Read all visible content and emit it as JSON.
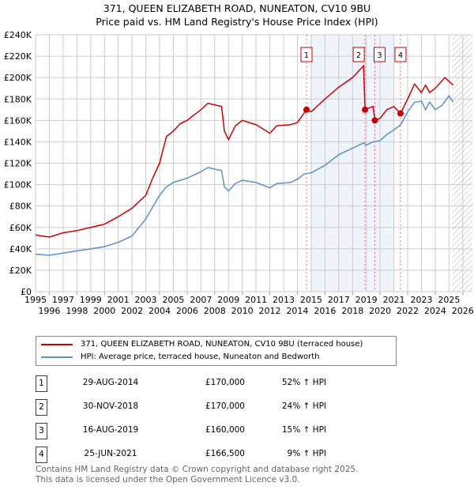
{
  "chart_data": {
    "type": "line",
    "title": "371, QUEEN ELIZABETH ROAD, NUNEATON, CV10 9BU",
    "subtitle": "Price paid vs. HM Land Registry's House Price Index (HPI)",
    "xlim": [
      1995,
      2026.7
    ],
    "ylim": [
      0,
      240000
    ],
    "y_ticks": [
      0,
      20000,
      40000,
      60000,
      80000,
      100000,
      120000,
      140000,
      160000,
      180000,
      200000,
      220000,
      240000
    ],
    "y_tick_labels": [
      "£0",
      "£20K",
      "£40K",
      "£60K",
      "£80K",
      "£100K",
      "£120K",
      "£140K",
      "£160K",
      "£180K",
      "£200K",
      "£220K",
      "£240K"
    ],
    "x_ticks": [
      1995,
      1996,
      1997,
      1998,
      1999,
      2000,
      2001,
      2002,
      2003,
      2004,
      2005,
      2006,
      2007,
      2008,
      2009,
      2010,
      2011,
      2012,
      2013,
      2014,
      2015,
      2016,
      2017,
      2018,
      2019,
      2020,
      2021,
      2022,
      2023,
      2024,
      2025,
      2026
    ],
    "x_tick_labels": [
      "1995",
      "1996",
      "1997",
      "1998",
      "1999",
      "2000",
      "2001",
      "2002",
      "2003",
      "2004",
      "2005",
      "2006",
      "2007",
      "2008",
      "2009",
      "2010",
      "2011",
      "2012",
      "2013",
      "2014",
      "2015",
      "2016",
      "2017",
      "2018",
      "2019",
      "2020",
      "2021",
      "2022",
      "2023",
      "2024",
      "2025",
      "2026"
    ],
    "grid": true,
    "shaded_range": [
      2015,
      2021
    ],
    "hatched_from": 2025.25,
    "series": [
      {
        "name": "371, QUEEN ELIZABETH ROAD, NUNEATON, CV10 9BU (terraced house)",
        "color": "#cc0000",
        "x": [
          1995,
          1996,
          1997,
          1998,
          1999,
          2000,
          2001,
          2002,
          2003,
          2003.5,
          2004,
          2004.5,
          2005,
          2005.5,
          2006,
          2007,
          2007.5,
          2008.5,
          2008.7,
          2009,
          2009.5,
          2010,
          2011,
          2012,
          2012.5,
          2013.5,
          2014,
          2014.66,
          2015,
          2016,
          2017,
          2018,
          2018.8,
          2018.91,
          2019.5,
          2019.62,
          2020,
          2020.5,
          2021,
          2021.48,
          2022,
          2022.5,
          2023,
          2023.3,
          2023.6,
          2024,
          2024.7,
          2025.3
        ],
        "y": [
          53000,
          51000,
          55000,
          57000,
          60000,
          63000,
          70000,
          78000,
          90000,
          106000,
          120000,
          145000,
          150000,
          157000,
          160000,
          170000,
          176000,
          173000,
          150000,
          142000,
          155000,
          160000,
          156000,
          148000,
          155000,
          156000,
          158000,
          170000,
          168000,
          180000,
          191000,
          200000,
          211000,
          170000,
          173000,
          160000,
          162000,
          170000,
          173000,
          166500,
          180000,
          194000,
          186000,
          193000,
          186000,
          190000,
          200000,
          193000
        ]
      },
      {
        "name": "HPI: Average price, terraced house, Nuneaton and Bedworth",
        "color": "#5b8fd0",
        "x": [
          1995,
          1996,
          1997,
          1998,
          1999,
          2000,
          2001,
          2002,
          2003,
          2004,
          2004.5,
          2005,
          2006,
          2007,
          2007.5,
          2008.5,
          2008.7,
          2009,
          2009.5,
          2010,
          2011,
          2012,
          2012.5,
          2013.5,
          2014,
          2014.5,
          2015,
          2016,
          2017,
          2018,
          2018.8,
          2019,
          2019.5,
          2020,
          2020.5,
          2021,
          2021.5,
          2022,
          2022.5,
          2023,
          2023.3,
          2023.6,
          2024,
          2024.5,
          2025,
          2025.3
        ],
        "y": [
          35000,
          34000,
          36000,
          38000,
          40000,
          42000,
          46000,
          52000,
          68000,
          90000,
          98000,
          102000,
          106000,
          112000,
          116000,
          113000,
          98000,
          94000,
          101000,
          104000,
          102000,
          97000,
          101000,
          102000,
          105000,
          110000,
          111000,
          118000,
          128000,
          134000,
          139000,
          137000,
          140000,
          141000,
          147000,
          151000,
          156000,
          168000,
          177000,
          178000,
          170000,
          177000,
          170000,
          174000,
          183000,
          177000
        ]
      }
    ],
    "sales": [
      {
        "n": "1",
        "x": 2014.66,
        "y": 170000,
        "date": "29-AUG-2014",
        "price": "£170,000",
        "hpi": "52% ↑ HPI"
      },
      {
        "n": "2",
        "x": 2018.91,
        "y": 170000,
        "date": "30-NOV-2018",
        "price": "£170,000",
        "hpi": "24% ↑ HPI"
      },
      {
        "n": "3",
        "x": 2019.62,
        "y": 160000,
        "date": "16-AUG-2019",
        "price": "£160,000",
        "hpi": "15% ↑ HPI"
      },
      {
        "n": "4",
        "x": 2021.48,
        "y": 166500,
        "date": "25-JUN-2021",
        "price": "£166,500",
        "hpi": "9% ↑ HPI"
      }
    ]
  },
  "legend": {
    "red": "371, QUEEN ELIZABETH ROAD, NUNEATON, CV10 9BU (terraced house)",
    "blue": "HPI: Average price, terraced house, Nuneaton and Bedworth"
  },
  "footer": {
    "line1": "Contains HM Land Registry data © Crown copyright and database right 2025.",
    "line2": "This data is licensed under the Open Government Licence v3.0."
  }
}
